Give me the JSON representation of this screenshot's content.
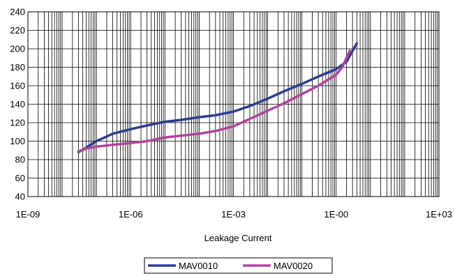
{
  "chart_data": {
    "type": "line",
    "title": "",
    "xlabel": "Leakage Current",
    "ylabel": "",
    "x_scale": "log",
    "xlim": [
      1e-09,
      1000
    ],
    "ylim": [
      40,
      240
    ],
    "x_tick_labels": [
      "1E-09",
      "1E-06",
      "1E-03",
      "1E-00",
      "1E+03"
    ],
    "y_ticks": [
      40,
      60,
      80,
      100,
      120,
      140,
      160,
      180,
      200,
      220,
      240
    ],
    "grid": "on",
    "legend_position": "bottom",
    "series": [
      {
        "name": "MAV0010",
        "color": "#2E3D8F",
        "points": [
          [
            3e-08,
            88
          ],
          [
            5e-08,
            93
          ],
          [
            1e-07,
            100
          ],
          [
            3e-07,
            108
          ],
          [
            1e-06,
            113
          ],
          [
            3e-06,
            117
          ],
          [
            1e-05,
            121
          ],
          [
            3e-05,
            123
          ],
          [
            0.0001,
            126
          ],
          [
            0.0003,
            128
          ],
          [
            0.001,
            132
          ],
          [
            0.003,
            138
          ],
          [
            0.01,
            146
          ],
          [
            0.03,
            154
          ],
          [
            0.1,
            162
          ],
          [
            0.3,
            170
          ],
          [
            1,
            178
          ],
          [
            2,
            186
          ],
          [
            4,
            206
          ]
        ]
      },
      {
        "name": "MAV0020",
        "color": "#B0449C",
        "points": [
          [
            3e-08,
            89
          ],
          [
            5e-08,
            92
          ],
          [
            1e-07,
            94
          ],
          [
            3e-07,
            96
          ],
          [
            1e-06,
            98
          ],
          [
            3e-06,
            100
          ],
          [
            1e-05,
            104
          ],
          [
            3e-05,
            106
          ],
          [
            0.0001,
            108
          ],
          [
            0.0003,
            111
          ],
          [
            0.001,
            116
          ],
          [
            0.003,
            124
          ],
          [
            0.01,
            133
          ],
          [
            0.03,
            141
          ],
          [
            0.1,
            151
          ],
          [
            0.3,
            160
          ],
          [
            1,
            172
          ],
          [
            1.5,
            180
          ],
          [
            2.5,
            198
          ]
        ]
      }
    ]
  }
}
